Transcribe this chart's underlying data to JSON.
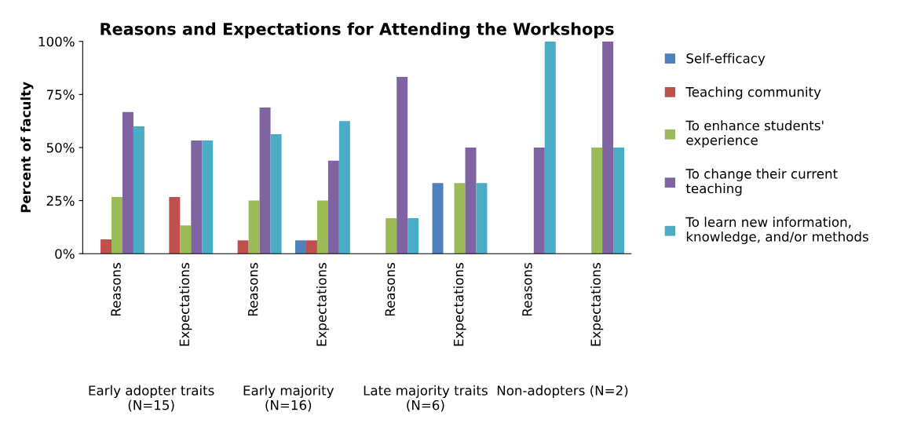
{
  "chart_data": {
    "type": "bar",
    "title": "Reasons and Expectations for Attending the Workshops",
    "ylabel": "Percent of faculty",
    "categories": [
      "Reasons",
      "Expectations",
      "Reasons",
      "Expectations",
      "Reasons",
      "Expectations",
      "Reasons",
      "Expectations"
    ],
    "annotations": [
      "Early adopter traits (N=15)",
      "Early majority (N=16)",
      "Late majority traits (N=6)",
      "Non-adopters (N=2)"
    ],
    "series": [
      {
        "name": "Self-efficacy",
        "color": "#4f81bd",
        "values": [
          0,
          0,
          0,
          6.3,
          0,
          33.3,
          0,
          0
        ]
      },
      {
        "name": "Teaching community",
        "color": "#c0504d",
        "values": [
          6.7,
          26.7,
          6.3,
          6.3,
          0,
          0,
          0,
          0
        ]
      },
      {
        "name": "To enhance students' experience",
        "color": "#9bbb59",
        "values": [
          26.7,
          13.3,
          25,
          25,
          16.7,
          33.3,
          0,
          50
        ]
      },
      {
        "name": "To change their current teaching",
        "color": "#8064a2",
        "values": [
          66.7,
          53.3,
          68.8,
          43.8,
          83.3,
          50,
          50,
          100
        ]
      },
      {
        "name": "To learn new information, knowledge, and/or methods",
        "color": "#4bacc6",
        "values": [
          60,
          53.3,
          56.3,
          62.5,
          16.7,
          33.3,
          100,
          50
        ]
      }
    ],
    "ylim": [
      0,
      100
    ],
    "yticks": [
      {
        "value": 0,
        "label": "0%"
      },
      {
        "value": 25,
        "label": "25%"
      },
      {
        "value": 50,
        "label": "50%"
      },
      {
        "value": 75,
        "label": "75%"
      },
      {
        "value": 100,
        "label": "100%"
      }
    ],
    "grid": false,
    "legend": "right"
  }
}
